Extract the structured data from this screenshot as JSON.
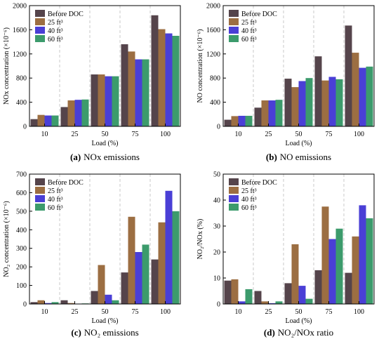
{
  "colors": {
    "Before DOC": "#55444b",
    "25 ft³": "#9c6e42",
    "40 ft³": "#4a3fd6",
    "60 ft³": "#3c9b6c"
  },
  "chart_data": [
    {
      "id": "a",
      "type": "bar",
      "caption_letter": "(a)",
      "caption_text": "NOx emissions",
      "ylabel": "NOx concentration (×10⁻⁶)",
      "xlabel": "Load (%)",
      "categories": [
        "10",
        "25",
        "50",
        "75",
        "100"
      ],
      "ylim": [
        0,
        2000
      ],
      "yticks": [
        0,
        400,
        800,
        1200,
        1600,
        2000
      ],
      "series": [
        {
          "name": "Before DOC",
          "values": [
            120,
            320,
            860,
            1360,
            1840
          ]
        },
        {
          "name": "25 ft³",
          "values": [
            190,
            430,
            860,
            1240,
            1610
          ]
        },
        {
          "name": "40 ft³",
          "values": [
            180,
            440,
            830,
            1110,
            1540
          ]
        },
        {
          "name": "60 ft³",
          "values": [
            180,
            445,
            830,
            1110,
            1500
          ]
        }
      ]
    },
    {
      "id": "b",
      "type": "bar",
      "caption_letter": "(b)",
      "caption_text": "NO emissions",
      "ylabel": "NO concentration (×10⁻⁶)",
      "xlabel": "Load (%)",
      "categories": [
        "10",
        "25",
        "50",
        "75",
        "100"
      ],
      "ylim": [
        0,
        2000
      ],
      "yticks": [
        0,
        400,
        800,
        1200,
        1600,
        2000
      ],
      "series": [
        {
          "name": "Before DOC",
          "values": [
            110,
            310,
            790,
            1160,
            1670
          ]
        },
        {
          "name": "25 ft³",
          "values": [
            170,
            430,
            650,
            760,
            1220
          ]
        },
        {
          "name": "40 ft³",
          "values": [
            175,
            430,
            750,
            820,
            970
          ]
        },
        {
          "name": "60 ft³",
          "values": [
            175,
            440,
            800,
            780,
            990
          ]
        }
      ]
    },
    {
      "id": "c",
      "type": "bar",
      "caption_letter": "(c)",
      "caption_text": "NO₂ emissions",
      "ylabel": "NO₂ concentration (×10⁻⁶)",
      "xlabel": "Load (%)",
      "categories": [
        "10",
        "25",
        "50",
        "75",
        "100"
      ],
      "ylim": [
        0,
        700
      ],
      "yticks": [
        0,
        100,
        200,
        300,
        400,
        500,
        600,
        700
      ],
      "series": [
        {
          "name": "Before DOC",
          "values": [
            10,
            20,
            70,
            170,
            240
          ]
        },
        {
          "name": "25 ft³",
          "values": [
            20,
            5,
            210,
            470,
            440
          ]
        },
        {
          "name": "40 ft³",
          "values": [
            5,
            2,
            50,
            280,
            610
          ]
        },
        {
          "name": "60 ft³",
          "values": [
            10,
            3,
            20,
            320,
            500
          ]
        }
      ]
    },
    {
      "id": "d",
      "type": "bar",
      "caption_letter": "(d)",
      "caption_text": "NO₂/NOx ratio",
      "ylabel": "NO₂/NOx (%)",
      "xlabel": "Load (%)",
      "categories": [
        "10",
        "25",
        "50",
        "75",
        "100"
      ],
      "ylim": [
        0,
        50
      ],
      "yticks": [
        0,
        10,
        20,
        30,
        40,
        50
      ],
      "series": [
        {
          "name": "Before DOC",
          "values": [
            9,
            5,
            8,
            13,
            12
          ]
        },
        {
          "name": "25 ft³",
          "values": [
            9.5,
            1,
            23,
            37.5,
            26
          ]
        },
        {
          "name": "40 ft³",
          "values": [
            1,
            0.3,
            7,
            25,
            38
          ]
        },
        {
          "name": "60 ft³",
          "values": [
            5.7,
            1,
            2,
            29,
            33
          ]
        }
      ]
    }
  ]
}
